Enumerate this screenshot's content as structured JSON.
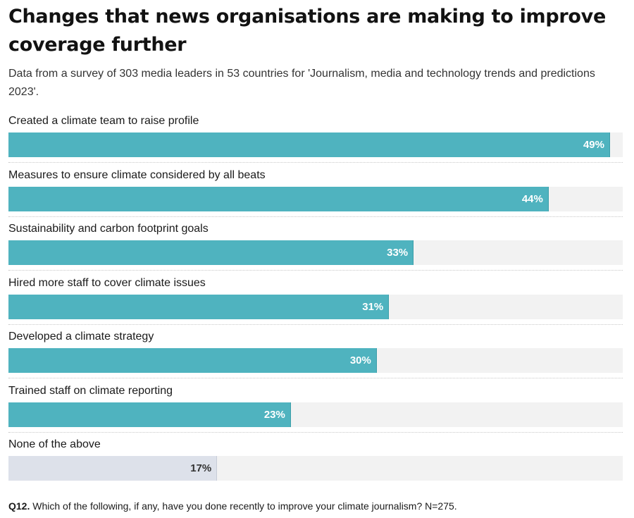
{
  "chart_data": {
    "type": "bar",
    "orientation": "horizontal",
    "title": "Changes that news organisations are making to improve coverage further",
    "subtitle": "Data from a survey of 303 media leaders in 53 countries for 'Journalism, media and technology trends and predictions 2023'.",
    "categories": [
      "Created a climate team to raise profile",
      "Measures to ensure climate considered by all beats",
      "Sustainability and carbon footprint goals",
      "Hired more staff to cover climate issues",
      "Developed a climate strategy",
      "Trained staff on climate reporting",
      "None of the above"
    ],
    "values": [
      49,
      44,
      33,
      31,
      30,
      23,
      17
    ],
    "value_labels": [
      "49%",
      "44%",
      "33%",
      "31%",
      "30%",
      "23%",
      "17%"
    ],
    "xlim": [
      0,
      50
    ],
    "unit": "%",
    "xlabel": "",
    "ylabel": "",
    "grid": false,
    "legend": "none",
    "colors": {
      "bar": "#4fb3bf",
      "bar_muted": "#dde1ea",
      "track": "#f2f2f2"
    },
    "muted_categories": [
      "None of the above"
    ]
  },
  "footnote": {
    "question_id": "Q12.",
    "text": " Which of the following, if any, have you done recently to improve your climate journalism? N=275."
  }
}
